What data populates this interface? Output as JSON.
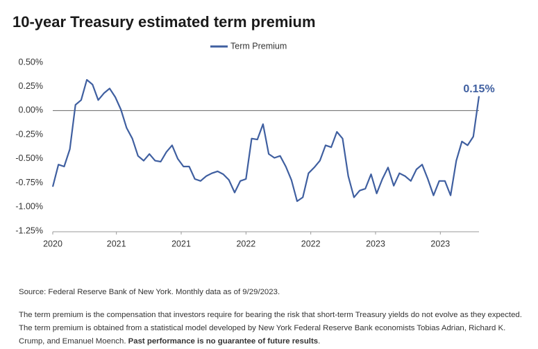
{
  "chart_data": {
    "type": "line",
    "title": "10-year Treasury estimated term premium",
    "x": [
      2020.0,
      2020.05,
      2020.1,
      2020.15,
      2020.2,
      2020.25,
      2020.3,
      2020.35,
      2020.4,
      2020.45,
      2020.5,
      2020.55,
      2020.6,
      2020.65,
      2020.7,
      2020.75,
      2020.8,
      2020.85,
      2020.9,
      2020.95,
      2021.0,
      2021.05,
      2021.1,
      2021.15,
      2021.2,
      2021.25,
      2021.3,
      2021.35,
      2021.4,
      2021.45,
      2021.5,
      2021.55,
      2021.6,
      2021.65,
      2021.7,
      2021.75,
      2021.8,
      2021.85,
      2021.9,
      2021.95,
      2022.0,
      2022.05,
      2022.1,
      2022.15,
      2022.2,
      2022.25,
      2022.3,
      2022.35,
      2022.4,
      2022.45,
      2022.5,
      2022.55,
      2022.6,
      2022.65,
      2022.7,
      2022.75,
      2022.8,
      2022.85,
      2022.9,
      2022.95,
      2023.0,
      2023.05,
      2023.1,
      2023.15,
      2023.2,
      2023.25,
      2023.3,
      2023.35,
      2023.4,
      2023.45,
      2023.5,
      2023.55,
      2023.6,
      2023.65,
      2023.7,
      2023.75
    ],
    "series": [
      {
        "name": "Term Premium",
        "color": "#3f5fa0",
        "values": [
          -0.79,
          -0.56,
          -0.58,
          -0.4,
          0.06,
          0.11,
          0.32,
          0.27,
          0.11,
          0.18,
          0.23,
          0.14,
          0.01,
          -0.18,
          -0.29,
          -0.47,
          -0.52,
          -0.45,
          -0.52,
          -0.53,
          -0.43,
          -0.36,
          -0.5,
          -0.58,
          -0.58,
          -0.71,
          -0.73,
          -0.68,
          -0.65,
          -0.63,
          -0.66,
          -0.72,
          -0.85,
          -0.73,
          -0.71,
          -0.29,
          -0.3,
          -0.14,
          -0.45,
          -0.49,
          -0.47,
          -0.58,
          -0.72,
          -0.94,
          -0.9,
          -0.65,
          -0.59,
          -0.52,
          -0.36,
          -0.38,
          -0.22,
          -0.29,
          -0.68,
          -0.9,
          -0.83,
          -0.81,
          -0.66,
          -0.86,
          -0.71,
          -0.59,
          -0.78,
          -0.65,
          -0.68,
          -0.73,
          -0.61,
          -0.56,
          -0.71,
          -0.88,
          -0.73,
          -0.73,
          -0.88,
          -0.52,
          -0.32,
          -0.36,
          -0.27,
          0.15
        ]
      }
    ],
    "xlim": [
      2020.0,
      2023.75
    ],
    "xticks": [
      {
        "value": 2020.0,
        "label": "2020"
      },
      {
        "value": 2020.56,
        "label": "2021"
      },
      {
        "value": 2021.13,
        "label": "2021"
      },
      {
        "value": 2021.7,
        "label": "2022"
      },
      {
        "value": 2022.27,
        "label": "2022"
      },
      {
        "value": 2022.84,
        "label": "2023"
      },
      {
        "value": 2023.41,
        "label": "2023"
      }
    ],
    "ylim": [
      -1.25,
      0.5
    ],
    "yticks": [
      {
        "value": 0.5,
        "label": "0.50%"
      },
      {
        "value": 0.25,
        "label": "0.25%"
      },
      {
        "value": 0,
        "label": "0.00%"
      },
      {
        "value": -0.25,
        "label": "-0.25%"
      },
      {
        "value": -0.5,
        "label": "-0.50%"
      },
      {
        "value": -0.75,
        "label": "-0.75%"
      },
      {
        "value": -1.0,
        "label": "-1.00%"
      },
      {
        "value": -1.25,
        "label": "-1.25%"
      }
    ],
    "grid": false,
    "legend": "top",
    "annotation": "0.15%"
  },
  "footer": {
    "source": "Source: Federal Reserve Bank of New York. Monthly data as of 9/29/2023.",
    "note": "The term premium is the compensation that investors require for bearing the risk that short-term Treasury yields do not evolve as they expected. The term premium is obtained from a statistical model developed by New York Federal Reserve Bank economists Tobias Adrian, Richard K. Crump, and Emanuel Moench. ",
    "note_bold": "Past performance is no guarantee of future results",
    "note_end": "."
  }
}
